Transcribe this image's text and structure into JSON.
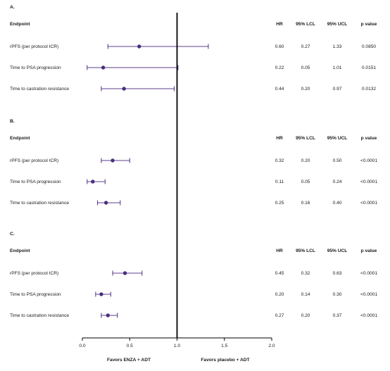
{
  "chart_data": {
    "type": "forest",
    "x_axis": {
      "ticks": [
        0.0,
        0.5,
        1.0,
        1.5,
        2.0
      ],
      "tick_labels": [
        "0.0",
        "0.5",
        "1.0",
        "1.5",
        "2.0"
      ],
      "range": [
        0,
        2
      ],
      "reference_line": 1.0,
      "left_label": "Favors ENZA + ADT",
      "right_label": "Favors placebo + ADT"
    },
    "columns": {
      "endpoint": "Endpoint",
      "hr": "HR",
      "lcl": "95% LCL",
      "ucl": "95% UCL",
      "p": "p value"
    },
    "panels": [
      {
        "label": "A.",
        "rows": [
          {
            "endpoint": "rPFS (per protocol ICR)",
            "hr": 0.6,
            "lcl": 0.27,
            "ucl": 1.33,
            "hr_text": "0.60",
            "lcl_text": "0.27",
            "ucl_text": "1.33",
            "p": "0.0850"
          },
          {
            "endpoint": "Time to PSA progression",
            "hr": 0.22,
            "lcl": 0.05,
            "ucl": 1.01,
            "hr_text": "0.22",
            "lcl_text": "0.05",
            "ucl_text": "1.01",
            "p": "0.0151"
          },
          {
            "endpoint": "Time to castration resistance",
            "hr": 0.44,
            "lcl": 0.2,
            "ucl": 0.97,
            "hr_text": "0.44",
            "lcl_text": "0.20",
            "ucl_text": "0.97",
            "p": "0.0132"
          }
        ]
      },
      {
        "label": "B.",
        "rows": [
          {
            "endpoint": "rPFS (per protocol ICR)",
            "hr": 0.32,
            "lcl": 0.2,
            "ucl": 0.5,
            "hr_text": "0.32",
            "lcl_text": "0.20",
            "ucl_text": "0.50",
            "p": "<0.0001"
          },
          {
            "endpoint": "Time to PSA progression",
            "hr": 0.11,
            "lcl": 0.05,
            "ucl": 0.24,
            "hr_text": "0.11",
            "lcl_text": "0.05",
            "ucl_text": "0.24",
            "p": "<0.0001"
          },
          {
            "endpoint": "Time to castration resistance",
            "hr": 0.25,
            "lcl": 0.16,
            "ucl": 0.4,
            "hr_text": "0.25",
            "lcl_text": "0.16",
            "ucl_text": "0.40",
            "p": "<0.0001"
          }
        ]
      },
      {
        "label": "C.",
        "rows": [
          {
            "endpoint": "rPFS (per protocol ICR)",
            "hr": 0.45,
            "lcl": 0.32,
            "ucl": 0.63,
            "hr_text": "0.45",
            "lcl_text": "0.32",
            "ucl_text": "0.63",
            "p": "<0.0001"
          },
          {
            "endpoint": "Time to PSA progression",
            "hr": 0.2,
            "lcl": 0.14,
            "ucl": 0.3,
            "hr_text": "0.20",
            "lcl_text": "0.14",
            "ucl_text": "0.30",
            "p": "<0.0001"
          },
          {
            "endpoint": "Time to castration resistance",
            "hr": 0.27,
            "lcl": 0.2,
            "ucl": 0.37,
            "hr_text": "0.27",
            "lcl_text": "0.20",
            "ucl_text": "0.37",
            "p": "<0.0001"
          }
        ]
      }
    ],
    "colors": {
      "ci_line": "#5b3f8c",
      "marker": "#4b2d7f",
      "reference": "#000000",
      "axis": "#000000",
      "text": "#1a1a1a"
    }
  }
}
